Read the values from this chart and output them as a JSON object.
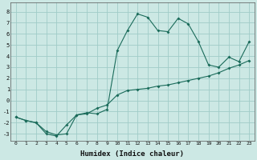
{
  "xlabel": "Humidex (Indice chaleur)",
  "background_color": "#cce8e4",
  "grid_color": "#a0ccc8",
  "line_color": "#1a6b5a",
  "xlim": [
    -0.5,
    23.5
  ],
  "ylim": [
    -3.6,
    8.8
  ],
  "xticks": [
    0,
    1,
    2,
    3,
    4,
    5,
    6,
    7,
    8,
    9,
    10,
    11,
    12,
    13,
    14,
    15,
    16,
    17,
    18,
    19,
    20,
    21,
    22,
    23
  ],
  "yticks": [
    -3,
    -2,
    -1,
    0,
    1,
    2,
    3,
    4,
    5,
    6,
    7,
    8
  ],
  "curve1_x": [
    0,
    1,
    2,
    3,
    4,
    5,
    6,
    7,
    8,
    9,
    10,
    11,
    12,
    13,
    14,
    15,
    16,
    17,
    18,
    19,
    20,
    21,
    22,
    23
  ],
  "curve1_y": [
    -1.5,
    -1.8,
    -2.0,
    -2.8,
    -3.1,
    -3.0,
    -1.3,
    -1.2,
    -0.7,
    -0.4,
    0.5,
    0.9,
    1.0,
    1.1,
    1.3,
    1.4,
    1.6,
    1.8,
    2.0,
    2.2,
    2.5,
    2.9,
    3.2,
    3.6
  ],
  "curve2_x": [
    0,
    1,
    2,
    3,
    4,
    5,
    6,
    7,
    8,
    9,
    10,
    11,
    12,
    13,
    14,
    15,
    16,
    17,
    18,
    19,
    20,
    21,
    22,
    23
  ],
  "curve2_y": [
    -1.5,
    -1.8,
    -2.0,
    -3.0,
    -3.2,
    -2.2,
    -1.3,
    -1.1,
    -1.2,
    -0.8,
    4.5,
    6.3,
    7.8,
    7.5,
    6.3,
    6.2,
    7.4,
    6.9,
    5.3,
    3.2,
    3.0,
    3.9,
    3.5,
    5.3
  ]
}
